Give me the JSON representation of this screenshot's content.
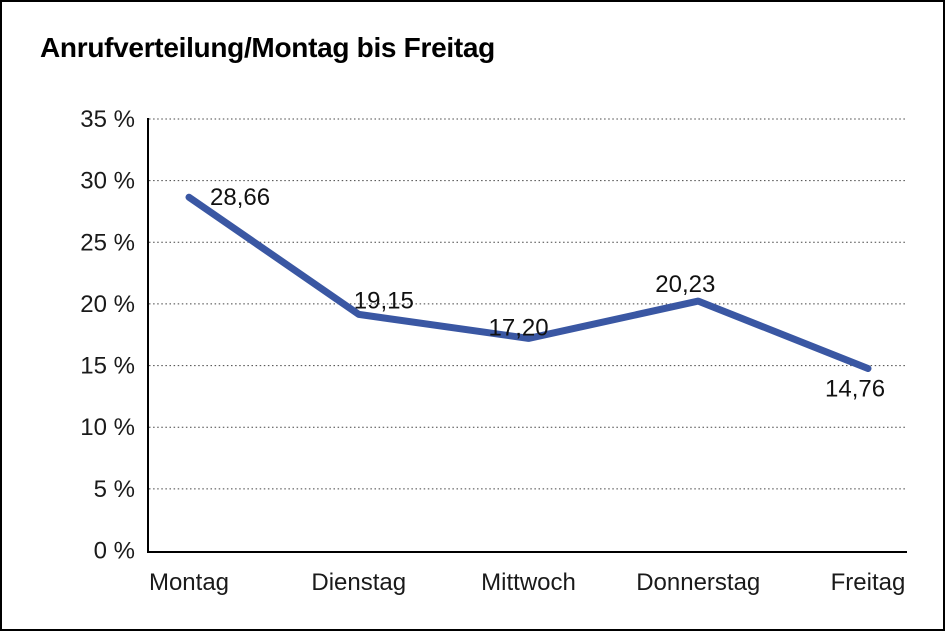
{
  "title": "Anrufverteilung/Montag bis Freitag",
  "frame": {
    "border_color": "#000000",
    "background": "#ffffff"
  },
  "chart_data": {
    "type": "line",
    "title": "Anrufverteilung/Montag bis Freitag",
    "categories": [
      "Montag",
      "Dienstag",
      "Mittwoch",
      "Donnerstag",
      "Freitag"
    ],
    "series": [
      {
        "name": "Anrufverteilung",
        "values": [
          28.66,
          19.15,
          17.2,
          20.23,
          14.76
        ]
      }
    ],
    "value_labels": [
      "28,66",
      "19,15",
      "17,20",
      "20,23",
      "14,76"
    ],
    "y_ticks": [
      "0 %",
      "5 %",
      "10 %",
      "15 %",
      "20 %",
      "25 %",
      "30 %",
      "35 %"
    ],
    "ylim": [
      0,
      35
    ],
    "y_tick_step": 5,
    "grid": "horizontal-dotted",
    "legend": "none",
    "xlabel": "",
    "ylabel": "",
    "line_color": "#3A57A3",
    "gridline_color": "#444444",
    "axis_color": "#000000",
    "text_color": "#111111"
  }
}
